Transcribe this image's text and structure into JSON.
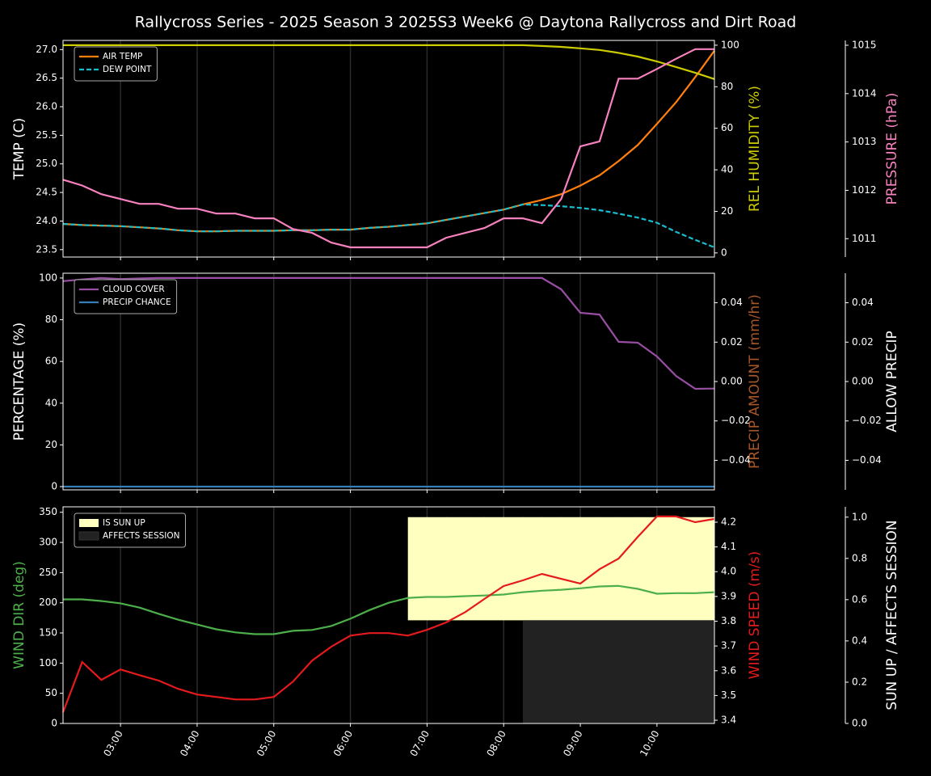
{
  "title": "Rallycross Series - 2025 Season 3 2025S3 Week6 @ Daytona Rallycross and Dirt Road",
  "chart_data": [
    {
      "type": "line",
      "ylabel": "TEMP (C)",
      "ylabel_color": "#ffffff",
      "y2label": "REL HUMIDITY (%)",
      "y2label_color": "#cccc00",
      "y3label": "PRESSURE (hPa)",
      "y3label_color": "#f781bf",
      "x": [
        "02:15",
        "02:30",
        "02:45",
        "03:00",
        "03:15",
        "03:30",
        "03:45",
        "04:00",
        "04:15",
        "04:30",
        "04:45",
        "05:00",
        "05:15",
        "05:30",
        "05:45",
        "06:00",
        "06:15",
        "06:30",
        "06:45",
        "07:00",
        "07:15",
        "07:30",
        "07:45",
        "08:00",
        "08:15",
        "08:30",
        "08:45",
        "09:00",
        "09:15",
        "09:30",
        "09:45",
        "10:00",
        "10:15",
        "10:30",
        "10:45"
      ],
      "xlim": [
        "02:15",
        "10:45"
      ],
      "xticks": [
        "03:00",
        "04:00",
        "05:00",
        "06:00",
        "07:00",
        "08:00",
        "09:00",
        "10:00"
      ],
      "xtick_labels": false,
      "grid": "x",
      "legend": "upper left",
      "ylim": [
        23.37,
        27.16
      ],
      "yticks": [
        23.5,
        {
          "value": 24,
          "label": "24.0"
        },
        24.5,
        {
          "value": 25,
          "label": "25.0"
        },
        25.5,
        {
          "value": 26,
          "label": "26.0"
        },
        26.5,
        {
          "value": 27,
          "label": "27.0"
        }
      ],
      "y2lim": [
        -2,
        102.3
      ],
      "y2ticks": [
        0,
        20,
        40,
        60,
        80,
        100
      ],
      "y3lim": [
        1010.62,
        1015.1
      ],
      "y3ticks": [
        1011,
        1012,
        1013,
        1014,
        1015
      ],
      "series": [
        {
          "name": "AIR TEMP",
          "color": "#ff7f0e",
          "values": [
            23.95,
            23.93,
            23.92,
            23.91,
            23.89,
            23.87,
            23.84,
            23.82,
            23.82,
            23.83,
            23.83,
            23.83,
            23.84,
            23.84,
            23.85,
            23.85,
            23.88,
            23.9,
            23.93,
            23.96,
            24.02,
            24.08,
            24.14,
            24.2,
            24.29,
            24.37,
            24.47,
            24.62,
            24.8,
            25.05,
            25.33,
            25.7,
            26.08,
            26.52,
            26.98
          ]
        },
        {
          "name": "DEW POINT",
          "color": "#17becf",
          "dash": true,
          "values": [
            23.95,
            23.93,
            23.92,
            23.91,
            23.89,
            23.87,
            23.84,
            23.82,
            23.82,
            23.83,
            23.83,
            23.83,
            23.84,
            23.84,
            23.85,
            23.85,
            23.88,
            23.9,
            23.93,
            23.96,
            24.02,
            24.08,
            24.14,
            24.2,
            24.29,
            24.28,
            24.26,
            24.23,
            24.19,
            24.13,
            24.06,
            23.97,
            23.81,
            23.67,
            23.54
          ]
        },
        {
          "color": "#cccc00",
          "axis": "y2",
          "values": [
            100,
            100,
            100,
            100,
            100,
            100,
            100,
            100,
            100,
            100,
            100,
            100,
            100,
            100,
            100,
            100,
            100,
            100,
            100,
            100,
            100,
            100,
            100,
            100,
            100,
            99.6,
            99.2,
            98.5,
            97.7,
            96.3,
            94.5,
            92.2,
            89.5,
            86.7,
            83.7
          ]
        },
        {
          "color": "#f781bf",
          "axis": "y3",
          "values": [
            1012.22,
            1012.1,
            1011.92,
            1011.82,
            1011.72,
            1011.72,
            1011.62,
            1011.62,
            1011.52,
            1011.52,
            1011.42,
            1011.42,
            1011.2,
            1011.12,
            1010.92,
            1010.82,
            1010.82,
            1010.82,
            1010.82,
            1010.82,
            1011.02,
            1011.12,
            1011.22,
            1011.42,
            1011.42,
            1011.32,
            1011.82,
            1012.91,
            1013.01,
            1014.31,
            1014.31,
            1014.51,
            1014.72,
            1014.92,
            1014.92
          ]
        }
      ]
    },
    {
      "type": "line",
      "ylabel": "PERCENTAGE (%)",
      "ylabel_color": "#ffffff",
      "y2label": "PRECIP AMOUNT (mm/hr)",
      "y2label_color": "#a65628",
      "y3label": "ALLOW PRECIP",
      "y3label_color": "#ffffff",
      "x": [
        "02:15",
        "02:30",
        "02:45",
        "03:00",
        "03:15",
        "03:30",
        "03:45",
        "04:00",
        "04:15",
        "04:30",
        "04:45",
        "05:00",
        "05:15",
        "05:30",
        "05:45",
        "06:00",
        "06:15",
        "06:30",
        "06:45",
        "07:00",
        "07:15",
        "07:30",
        "07:45",
        "08:00",
        "08:15",
        "08:30",
        "08:45",
        "09:00",
        "09:15",
        "09:30",
        "09:45",
        "10:00",
        "10:15",
        "10:30",
        "10:45"
      ],
      "xlim": [
        "02:15",
        "10:45"
      ],
      "xticks": [
        "03:00",
        "04:00",
        "05:00",
        "06:00",
        "07:00",
        "08:00",
        "09:00",
        "10:00"
      ],
      "xtick_labels": false,
      "grid": "x",
      "legend": "upper left",
      "ylim": [
        -1.55,
        102.3
      ],
      "yticks": [
        0,
        20,
        40,
        60,
        80,
        100
      ],
      "y2lim": [
        -0.055,
        0.055
      ],
      "y2ticks": [
        {
          "value": -0.04,
          "label": "−0.04"
        },
        {
          "value": -0.02,
          "label": "−0.02"
        },
        {
          "value": 0,
          "label": "0.00"
        },
        0.02,
        0.04
      ],
      "y3lim": [
        -0.055,
        0.055
      ],
      "y3ticks": [
        {
          "value": -0.04,
          "label": "−0.04"
        },
        {
          "value": -0.02,
          "label": "−0.02"
        },
        {
          "value": 0,
          "label": "0.00"
        },
        0.02,
        0.04
      ],
      "series": [
        {
          "name": "CLOUD COVER",
          "color": "#984ea3",
          "values": [
            98.5,
            99.3,
            100,
            99.5,
            99.8,
            100,
            100,
            100,
            100,
            100,
            100,
            100,
            100,
            100,
            100,
            100,
            100,
            100,
            100,
            100,
            100,
            100,
            100,
            100,
            100,
            100,
            94.6,
            83.3,
            82.5,
            69.4,
            69,
            62.4,
            53,
            46.9,
            47
          ]
        },
        {
          "name": "PRECIP CHANCE",
          "color": "#377eb8",
          "values": [
            0,
            0,
            0,
            0,
            0,
            0,
            0,
            0,
            0,
            0,
            0,
            0,
            0,
            0,
            0,
            0,
            0,
            0,
            0,
            0,
            0,
            0,
            0,
            0,
            0,
            0,
            0,
            0,
            0,
            0,
            0,
            0,
            0,
            0,
            0
          ]
        }
      ]
    },
    {
      "type": "line",
      "ylabel": "WIND DIR (deg)",
      "ylabel_color": "#4daf4a",
      "y2label": "WIND SPEED (m/s)",
      "y2label_color": "#e41a1c",
      "y3label": "SUN UP / AFFECTS SESSION",
      "y3label_color": "#ffffff",
      "x": [
        "02:15",
        "02:30",
        "02:45",
        "03:00",
        "03:15",
        "03:30",
        "03:45",
        "04:00",
        "04:15",
        "04:30",
        "04:45",
        "05:00",
        "05:15",
        "05:30",
        "05:45",
        "06:00",
        "06:15",
        "06:30",
        "06:45",
        "07:00",
        "07:15",
        "07:30",
        "07:45",
        "08:00",
        "08:15",
        "08:30",
        "08:45",
        "09:00",
        "09:15",
        "09:30",
        "09:45",
        "10:00",
        "10:15",
        "10:30",
        "10:45"
      ],
      "xlim": [
        "02:15",
        "10:45"
      ],
      "xticks": [
        "03:00",
        "04:00",
        "05:00",
        "06:00",
        "07:00",
        "08:00",
        "09:00",
        "10:00"
      ],
      "xtick_labels": true,
      "grid": "x",
      "legend": "upper left",
      "ylim": [
        0,
        359
      ],
      "yticks": [
        0,
        50,
        100,
        150,
        200,
        250,
        300,
        350
      ],
      "y2lim": [
        3.387,
        4.262
      ],
      "y2ticks": [
        3.4,
        3.5,
        3.6,
        3.7,
        3.8,
        3.9,
        {
          "value": 4,
          "label": "4.0"
        },
        4.1,
        4.2
      ],
      "y3lim": [
        0,
        1.05
      ],
      "y3ticks": [
        {
          "value": 0,
          "label": "0.0"
        },
        0.2,
        0.4,
        0.6,
        0.8,
        {
          "value": 1,
          "label": "1.0"
        }
      ],
      "series": [
        {
          "name": "IS SUN UP",
          "color": "#ffffc0",
          "style": "upper-band",
          "axis": "y3",
          "values": [
            0,
            0,
            0,
            0,
            0,
            0,
            0,
            0,
            0,
            0,
            0,
            0,
            0,
            0,
            0,
            0,
            0,
            0,
            1,
            1,
            1,
            1,
            1,
            1,
            1,
            1,
            1,
            1,
            1,
            1,
            1,
            1,
            1,
            1,
            1
          ]
        },
        {
          "name": "AFFECTS SESSION",
          "color": "#222222",
          "style": "lower-band",
          "axis": "y3",
          "values": [
            0,
            0,
            0,
            0,
            0,
            0,
            0,
            0,
            0,
            0,
            0,
            0,
            0,
            0,
            0,
            0,
            0,
            0,
            0,
            0,
            0,
            0,
            0,
            0,
            1,
            1,
            1,
            1,
            1,
            1,
            1,
            1,
            1,
            1,
            1
          ]
        },
        {
          "color": "#4daf4a",
          "values": [
            205.6,
            205.6,
            203,
            199,
            192,
            181.6,
            172,
            164,
            156,
            151,
            148,
            148,
            153.5,
            155,
            161.5,
            173.6,
            188,
            200,
            208,
            209.6,
            209.6,
            211,
            212,
            213.6,
            217.6,
            220,
            221.6,
            224,
            227,
            228,
            223,
            215,
            216,
            216,
            217.6
          ]
        },
        {
          "color": "#e41a1c",
          "axis": "y2",
          "values": [
            3.432,
            3.635,
            3.563,
            3.605,
            3.582,
            3.56,
            3.527,
            3.504,
            3.494,
            3.484,
            3.484,
            3.494,
            3.556,
            3.641,
            3.697,
            3.742,
            3.752,
            3.752,
            3.742,
            3.765,
            3.795,
            3.837,
            3.89,
            3.942,
            3.965,
            3.991,
            3.971,
            3.952,
            4.01,
            4.053,
            4.141,
            4.223,
            4.223,
            4.2,
            4.213
          ]
        }
      ]
    }
  ]
}
